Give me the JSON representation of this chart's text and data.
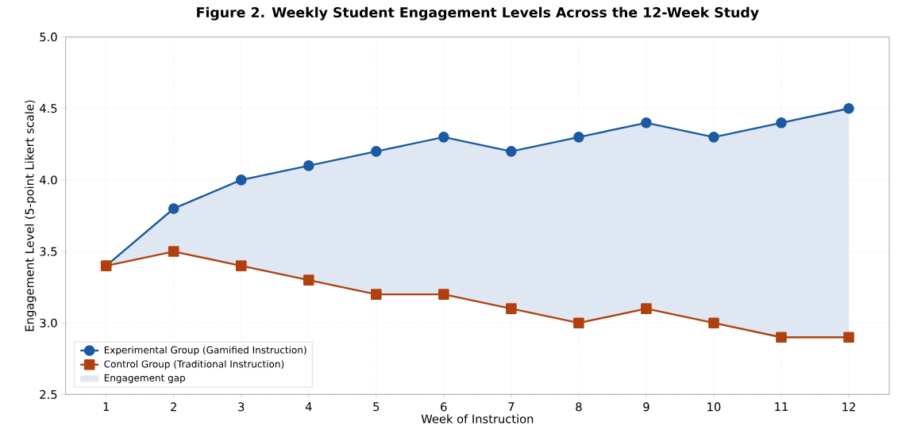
{
  "chart_data": {
    "type": "line",
    "title": "Figure 2. Weekly Student Engagement Levels Across the 12-Week Study",
    "xlabel": "Week of Instruction",
    "ylabel": "Engagement Level (5-point Likert scale)",
    "annotations": [
      "Engagement gap"
    ],
    "x": [
      1,
      2,
      3,
      4,
      5,
      6,
      7,
      8,
      9,
      10,
      11,
      12
    ],
    "series": [
      {
        "name": "Experimental Group (Gamified Instruction)",
        "type": "line",
        "color": "#1a5aa0",
        "marker": "circle",
        "values": [
          3.4,
          3.8,
          4.0,
          4.1,
          4.2,
          4.3,
          4.2,
          4.3,
          4.4,
          4.3,
          4.4,
          4.5
        ],
        "lower": [
          3.4,
          3.5,
          3.4,
          3.3,
          3.2,
          3.2,
          3.1,
          3.0,
          3.1,
          3.0,
          2.9,
          2.9
        ],
        "upper": [
          3.4,
          3.8,
          4.0,
          4.1,
          4.2,
          4.3,
          4.2,
          4.3,
          4.4,
          4.3,
          4.4,
          4.5
        ]
      },
      {
        "name": "Control Group (Traditional Instruction)",
        "type": "line",
        "color": "#b0410e",
        "marker": "square",
        "values": [
          3.4,
          3.5,
          3.4,
          3.3,
          3.2,
          3.2,
          3.1,
          3.0,
          3.1,
          3.0,
          2.9,
          2.9
        ]
      }
    ],
    "xlim": [
      0.4,
      12.6
    ],
    "xticks": [
      1,
      2,
      3,
      4,
      5,
      6,
      7,
      8,
      9,
      10,
      11,
      12
    ],
    "ylim": [
      2.5,
      5.0
    ],
    "yticks": [
      {
        "value": 2.5,
        "label": "2.5"
      },
      {
        "value": 3.0,
        "label": "3.0"
      },
      {
        "value": 3.5,
        "label": "3.5"
      },
      {
        "value": 4.0,
        "label": "4.0"
      },
      {
        "value": 4.5,
        "label": "4.5"
      },
      {
        "value": 5.0,
        "label": "5.0"
      }
    ],
    "grid": true,
    "legend": "bottom left"
  }
}
